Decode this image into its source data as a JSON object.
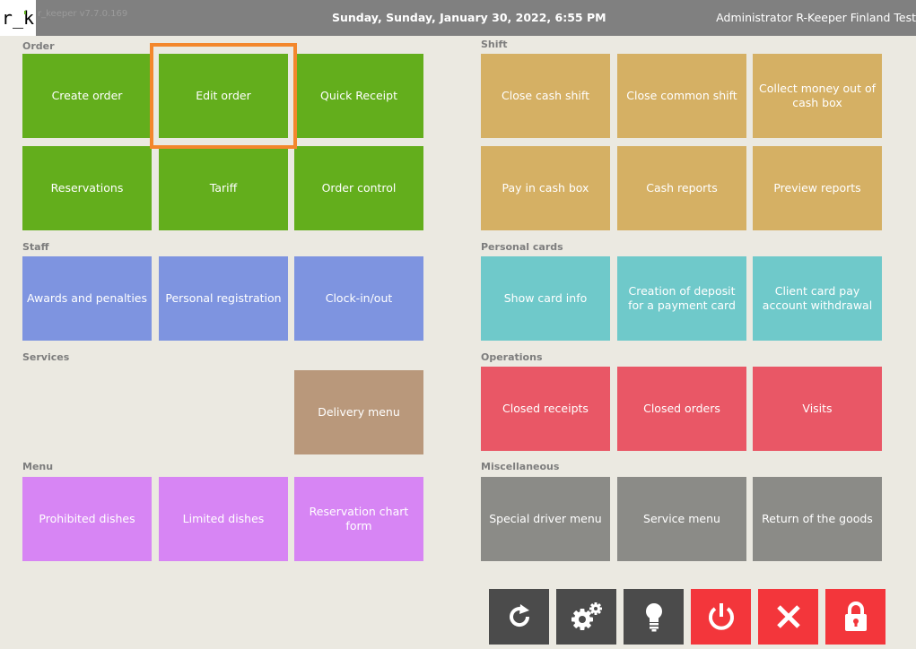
{
  "topbar": {
    "logo": "r_k",
    "version": "r_keeper v7.7.0.169",
    "datetime": "Sunday, Sunday, January 30, 2022, 6:55 PM",
    "user": "Administrator R-Keeper Finland Test"
  },
  "sections": {
    "order": "Order",
    "shift": "Shift",
    "staff": "Staff",
    "personal_cards": "Personal cards",
    "services": "Services",
    "operations": "Operations",
    "menu": "Menu",
    "miscellaneous": "Miscellaneous"
  },
  "tiles": {
    "create_order": "Create order",
    "edit_order": "Edit order",
    "quick_receipt": "Quick Receipt",
    "reservations": "Reservations",
    "tariff": "Tariff",
    "order_control": "Order control",
    "close_cash_shift": "Close cash shift",
    "close_common_shift": "Close common shift",
    "collect_money": "Collect money out of cash box",
    "pay_in_cash_box": "Pay in cash box",
    "cash_reports": "Cash reports",
    "preview_reports": "Preview reports",
    "awards_penalties": "Awards and penalties",
    "personal_registration": "Personal registration",
    "clock_in_out": "Clock-in/out",
    "show_card_info": "Show card info",
    "creation_deposit": "Creation of deposit for a payment card",
    "client_card_withdrawal": "Client card pay account withdrawal",
    "delivery_menu": "Delivery menu",
    "closed_receipts": "Closed receipts",
    "closed_orders": "Closed orders",
    "visits": "Visits",
    "prohibited_dishes": "Prohibited dishes",
    "limited_dishes": "Limited dishes",
    "reservation_chart_form": "Reservation chart form",
    "special_driver_menu": "Special driver menu",
    "service_menu": "Service menu",
    "return_goods": "Return of the goods"
  },
  "bottom_buttons": {
    "refresh": "refresh-icon",
    "settings": "gear-icon",
    "hint": "lightbulb-icon",
    "power": "power-icon",
    "close": "close-icon",
    "lock": "lock-icon"
  },
  "colors": {
    "order": "#63ae1c",
    "shift": "#d5b064",
    "staff": "#7e94e0",
    "personal_cards": "#6fc9ca",
    "services": "#b9987b",
    "operations": "#e95766",
    "menu": "#d785f4",
    "miscellaneous": "#8b8b87",
    "highlight": "#f3872c"
  }
}
